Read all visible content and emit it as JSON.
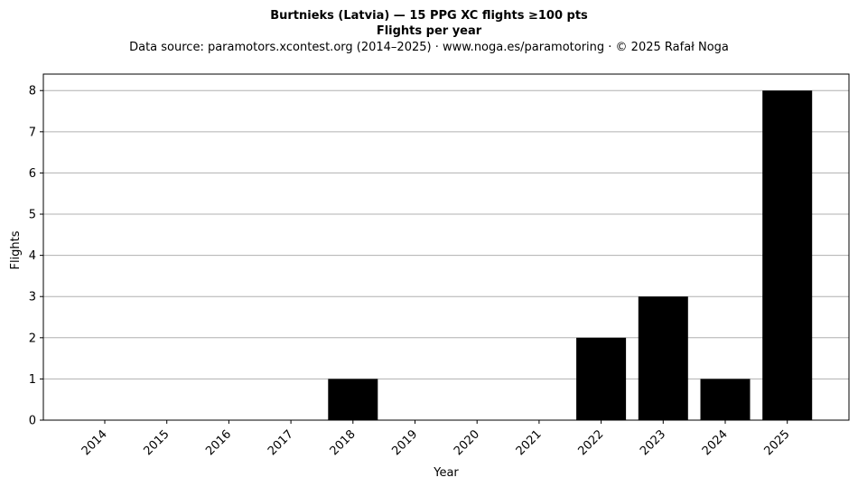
{
  "chart_data": {
    "type": "bar",
    "title_line1": "Burtnieks (Latvia)  —  15 PPG XC flights ≥100 pts",
    "title_line2": "Flights per year",
    "subtitle": "Data source: paramotors.xcontest.org (2014–2025)  ·  www.noga.es/paramotoring  ·  © 2025 Rafał Noga",
    "xlabel": "Year",
    "ylabel": "Flights",
    "categories": [
      "2014",
      "2015",
      "2016",
      "2017",
      "2018",
      "2019",
      "2020",
      "2021",
      "2022",
      "2023",
      "2024",
      "2025"
    ],
    "values": [
      0,
      0,
      0,
      0,
      1,
      0,
      0,
      0,
      2,
      3,
      1,
      8
    ],
    "ylim": [
      0,
      8.4
    ],
    "yticks": [
      0,
      1,
      2,
      3,
      4,
      5,
      6,
      7,
      8
    ],
    "grid": "horizontal",
    "bar_color": "#000000",
    "grid_color": "#b0b0b0"
  }
}
